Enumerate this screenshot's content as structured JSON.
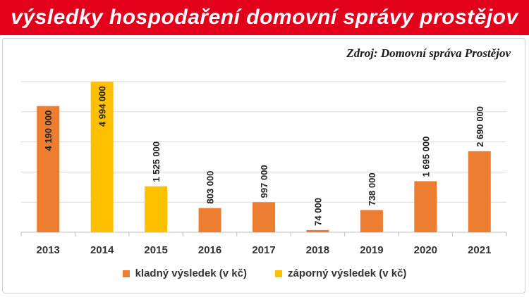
{
  "header": {
    "title": "výsledky hospodaření domovní správy prostějov"
  },
  "source": "Zdroj: Domovní správa Prostějov",
  "colors": {
    "positive": "#ed7d31",
    "negative": "#ffc000",
    "title_bg": "#e3001b"
  },
  "chart_data": {
    "type": "bar",
    "title": "",
    "xlabel": "",
    "ylabel": "",
    "ylim": [
      0,
      5000000
    ],
    "grid": true,
    "legend_position": "bottom",
    "categories": [
      "2013",
      "2014",
      "2015",
      "2016",
      "2017",
      "2018",
      "2019",
      "2020",
      "2021"
    ],
    "values": [
      4190000,
      4994000,
      1525000,
      803000,
      997000,
      74000,
      738000,
      1695000,
      2690000
    ],
    "value_labels": [
      "4 190 000",
      "4 994 000",
      "1 525 000",
      "803 000",
      "997 000",
      "74 000",
      "738 000",
      "1 695 000",
      "2 690 000"
    ],
    "kind": [
      "positive",
      "negative",
      "negative",
      "positive",
      "positive",
      "positive",
      "positive",
      "positive",
      "positive"
    ],
    "series": [
      {
        "name": "kladný výsledek (v kč)",
        "kind": "positive"
      },
      {
        "name": "záporný výsledek (v kč)",
        "kind": "negative"
      }
    ]
  }
}
